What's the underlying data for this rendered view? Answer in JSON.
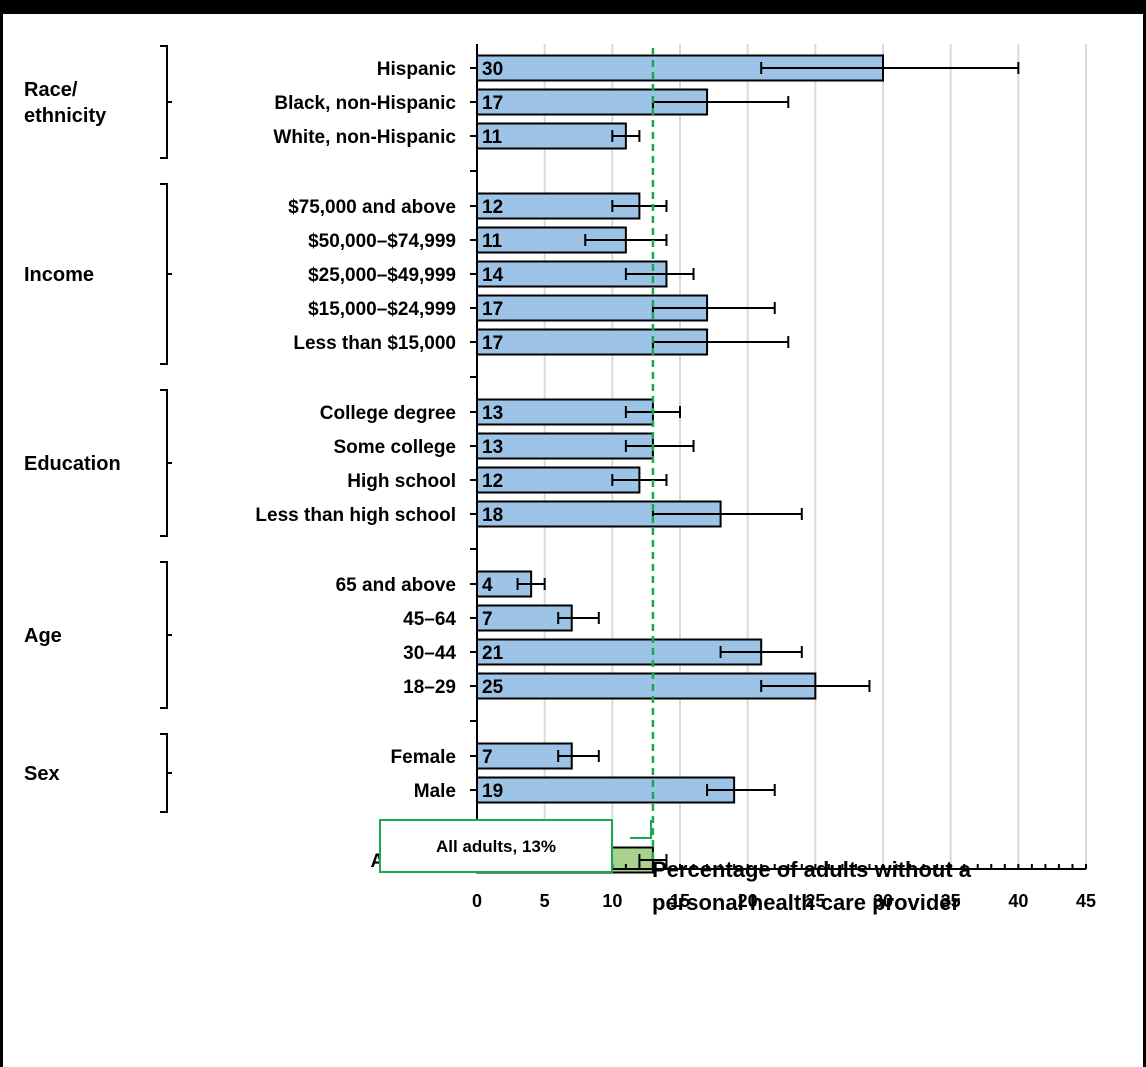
{
  "chart_data": {
    "type": "bar",
    "orientation": "horizontal",
    "xlabel_lines": [
      "Percentage of adults without a",
      "personal health care provider"
    ],
    "xlim": [
      0,
      45
    ],
    "x_ticks": [
      0,
      5,
      10,
      15,
      20,
      25,
      30,
      35,
      40,
      45
    ],
    "grid": "vertical",
    "reference_line": {
      "value": 13,
      "label": "All adults, 13%",
      "color": "#1aa850"
    },
    "colors": {
      "bar": "#9dc3e6",
      "total_bar": "#a9d18e",
      "edge": "#000000",
      "grid": "#d9d9d9"
    },
    "groups": [
      {
        "label_lines": [
          "Race/",
          "ethnicity"
        ],
        "bars": [
          {
            "label": "Hispanic",
            "value": 30,
            "ci": [
              21,
              40
            ]
          },
          {
            "label": "Black, non-Hispanic",
            "value": 17,
            "ci": [
              13,
              23
            ]
          },
          {
            "label": "White, non-Hispanic",
            "value": 11,
            "ci": [
              10,
              12
            ]
          }
        ]
      },
      {
        "label_lines": [
          "Income"
        ],
        "bars": [
          {
            "label": "$75,000 and above",
            "value": 12,
            "ci": [
              10,
              14
            ]
          },
          {
            "label": "$50,000–$74,999",
            "value": 11,
            "ci": [
              8,
              14
            ]
          },
          {
            "label": "$25,000–$49,999",
            "value": 14,
            "ci": [
              11,
              16
            ]
          },
          {
            "label": "$15,000–$24,999",
            "value": 17,
            "ci": [
              13,
              22
            ]
          },
          {
            "label": "Less than $15,000",
            "value": 17,
            "ci": [
              13,
              23
            ]
          }
        ]
      },
      {
        "label_lines": [
          "Education"
        ],
        "bars": [
          {
            "label": "College degree",
            "value": 13,
            "ci": [
              11,
              15
            ]
          },
          {
            "label": "Some college",
            "value": 13,
            "ci": [
              11,
              16
            ]
          },
          {
            "label": "High school",
            "value": 12,
            "ci": [
              10,
              14
            ]
          },
          {
            "label": "Less than high school",
            "value": 18,
            "ci": [
              13,
              24
            ]
          }
        ]
      },
      {
        "label_lines": [
          "Age"
        ],
        "bars": [
          {
            "label": "65 and above",
            "value": 4,
            "ci": [
              3,
              5
            ]
          },
          {
            "label": "45–64",
            "value": 7,
            "ci": [
              6,
              9
            ]
          },
          {
            "label": "30–44",
            "value": 21,
            "ci": [
              18,
              24
            ]
          },
          {
            "label": "18–29",
            "value": 25,
            "ci": [
              21,
              29
            ]
          }
        ]
      },
      {
        "label_lines": [
          "Sex"
        ],
        "bars": [
          {
            "label": "Female",
            "value": 7,
            "ci": [
              6,
              9
            ]
          },
          {
            "label": "Male",
            "value": 19,
            "ci": [
              17,
              22
            ]
          }
        ]
      },
      {
        "label_lines": [],
        "bars": [
          {
            "label": "All adults",
            "value": 13,
            "ci": [
              12,
              14
            ],
            "total": true
          }
        ]
      }
    ]
  }
}
